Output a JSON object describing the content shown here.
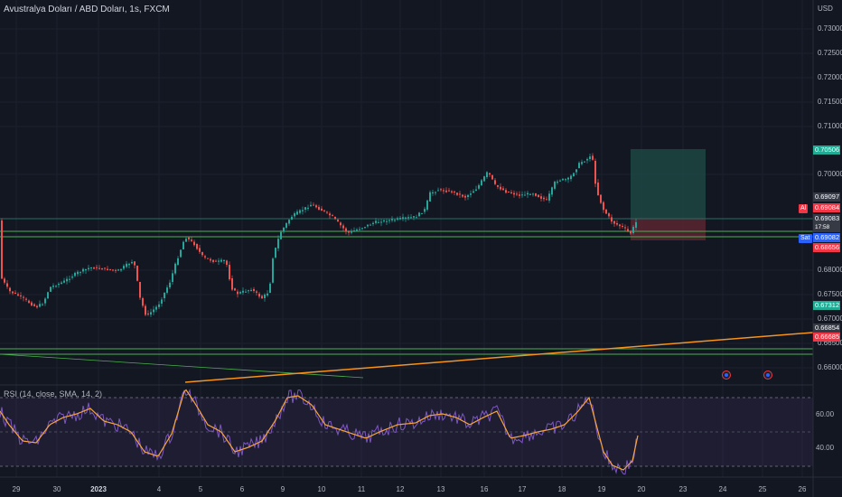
{
  "header": {
    "symbol_line": "Avustralya Doları / ABD Doları, 1s, FXCM",
    "currency": "USD"
  },
  "rsi": {
    "header": "RSI (14, close, SMA, 14, 2)",
    "levels": [
      "60.00",
      "40.00"
    ]
  },
  "price_axis": [
    "0.73000",
    "0.72500",
    "0.72000",
    "0.71500",
    "0.71000",
    "0.70000",
    "0.68000",
    "0.67500",
    "0.67000",
    "0.66500",
    "0.66000"
  ],
  "tags": {
    "take_profit": "0.70506",
    "p1": "0.69097",
    "buy_price": "0.69084",
    "p2": "0.69083",
    "countdown": "17:58",
    "sell_price": "0.69082",
    "stop_loss": "0.68656",
    "low_green": "0.67312",
    "level_a": "0.66854",
    "level_b": "0.66685"
  },
  "side_buttons": {
    "buy": "Al",
    "sell": "Sat"
  },
  "x_axis": [
    {
      "t": "29",
      "bold": false
    },
    {
      "t": "30",
      "bold": false
    },
    {
      "t": "2023",
      "bold": true
    },
    {
      "t": "4",
      "bold": false
    },
    {
      "t": "5",
      "bold": false
    },
    {
      "t": "6",
      "bold": false
    },
    {
      "t": "9",
      "bold": false
    },
    {
      "t": "10",
      "bold": false
    },
    {
      "t": "11",
      "bold": false
    },
    {
      "t": "12",
      "bold": false
    },
    {
      "t": "13",
      "bold": false
    },
    {
      "t": "16",
      "bold": false
    },
    {
      "t": "17",
      "bold": false
    },
    {
      "t": "18",
      "bold": false
    },
    {
      "t": "19",
      "bold": false
    },
    {
      "t": "20",
      "bold": false
    },
    {
      "t": "23",
      "bold": false
    },
    {
      "t": "24",
      "bold": false
    },
    {
      "t": "25",
      "bold": false
    },
    {
      "t": "26",
      "bold": false
    }
  ],
  "colors": {
    "bg": "#131722",
    "up": "#26a69a",
    "down": "#ef5350",
    "rsi_line": "#7e57c2",
    "rsi_sma": "#f7a43d",
    "trend": "#f7931a",
    "support": "#4caf50"
  }
}
